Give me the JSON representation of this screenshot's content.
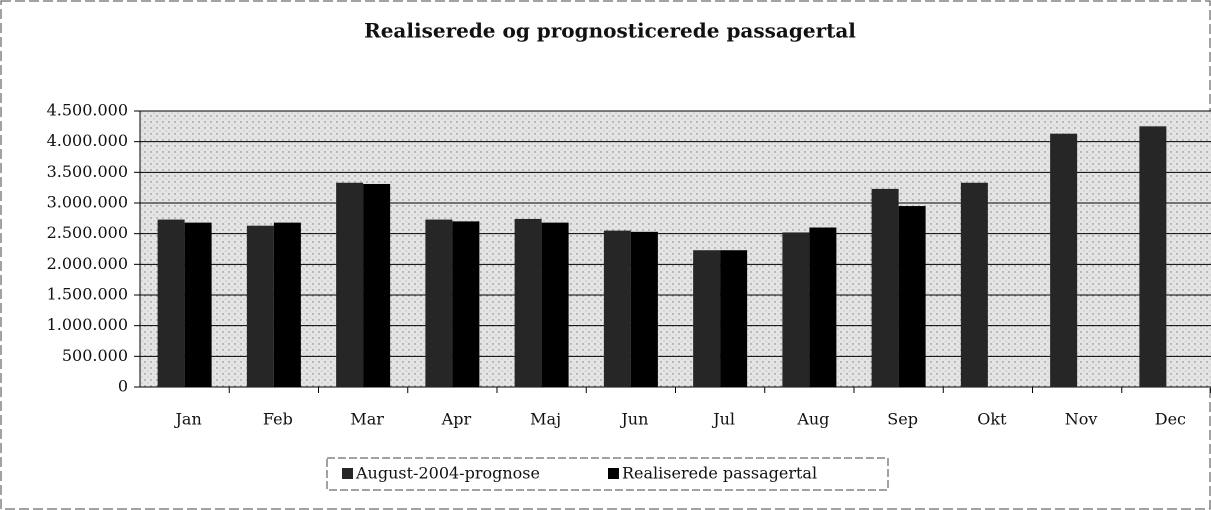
{
  "chart_data": {
    "type": "bar",
    "title": "Realiserede og prognosticerede passagertal",
    "categories": [
      "Jan",
      "Feb",
      "Mar",
      "Apr",
      "Maj",
      "Jun",
      "Jul",
      "Aug",
      "Sep",
      "Okt",
      "Nov",
      "Dec"
    ],
    "series": [
      {
        "name": "August-2004-prognose",
        "color": "#262626",
        "values": [
          2730000,
          2630000,
          3330000,
          2730000,
          2740000,
          2550000,
          2230000,
          2520000,
          3230000,
          3330000,
          4130000,
          4250000
        ]
      },
      {
        "name": "Realiserede passagertal",
        "color": "#000000",
        "values": [
          2680000,
          2680000,
          3310000,
          2700000,
          2680000,
          2530000,
          2230000,
          2600000,
          2950000,
          null,
          null,
          null
        ]
      }
    ],
    "ylim": [
      0,
      4500000
    ],
    "yticks": [
      0,
      {
        "value": 500000,
        "label": "500.000"
      },
      {
        "value": 1000000,
        "label": "1.000.000"
      },
      {
        "value": 1500000,
        "label": "1.500.000"
      },
      {
        "value": 2000000,
        "label": "2.000.000"
      },
      {
        "value": 2500000,
        "label": "2.500.000"
      },
      {
        "value": 3000000,
        "label": "3.000.000"
      },
      {
        "value": 3500000,
        "label": "3.500.000"
      },
      {
        "value": 4000000,
        "label": "4.000.000"
      },
      {
        "value": 4500000,
        "label": "4.500.000"
      }
    ],
    "grid": true,
    "legend": "bottom"
  }
}
